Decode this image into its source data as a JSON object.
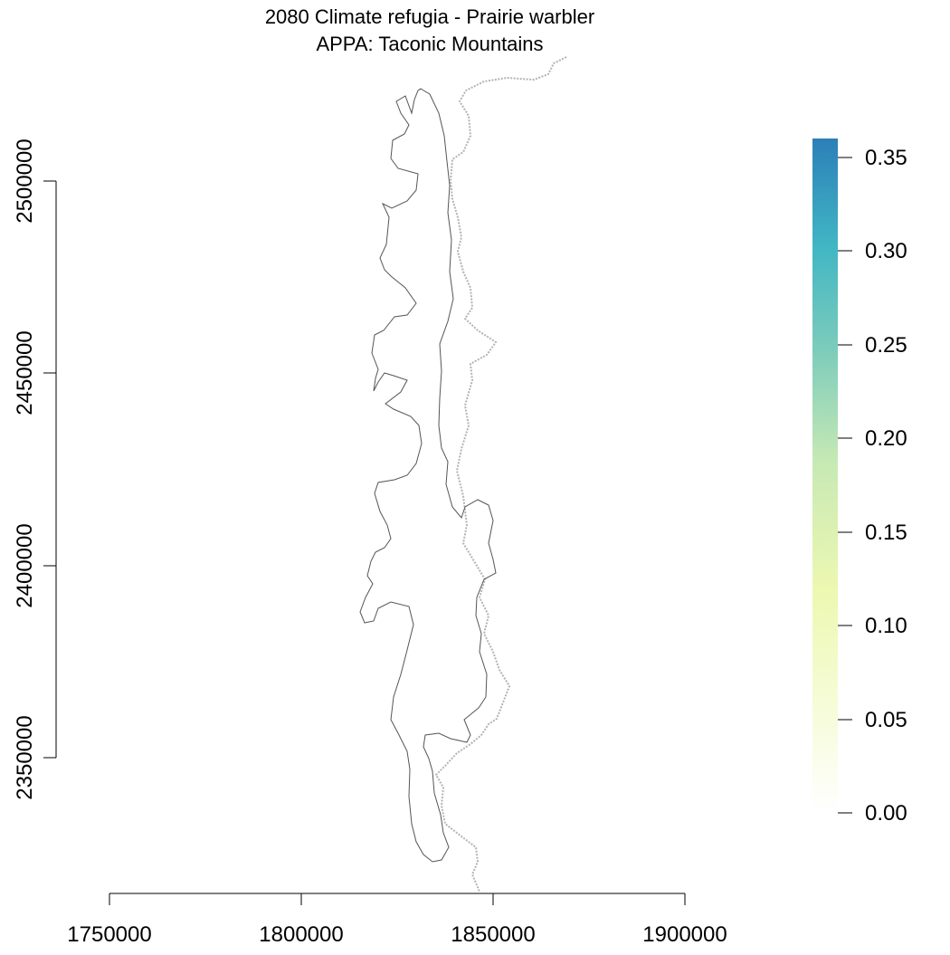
{
  "title": {
    "line1": "2080 Climate refugia - Prairie warbler",
    "line2": "APPA: Taconic Mountains"
  },
  "x_axis": {
    "ticks": [
      "1750000",
      "1800000",
      "1850000",
      "1900000"
    ]
  },
  "y_axis": {
    "ticks": [
      "2350000",
      "2400000",
      "2450000",
      "2500000"
    ]
  },
  "legend": {
    "ticks": [
      "0.00",
      "0.05",
      "0.10",
      "0.15",
      "0.20",
      "0.25",
      "0.30",
      "0.35"
    ],
    "colors": [
      "#ffffff",
      "#f7fcdc",
      "#edf8b1",
      "#c7e9b4",
      "#7fcdbb",
      "#41b6c4",
      "#2c7fb8"
    ]
  },
  "colors": {
    "boundary": "#555555",
    "state_line": "#b3b3b3"
  }
}
